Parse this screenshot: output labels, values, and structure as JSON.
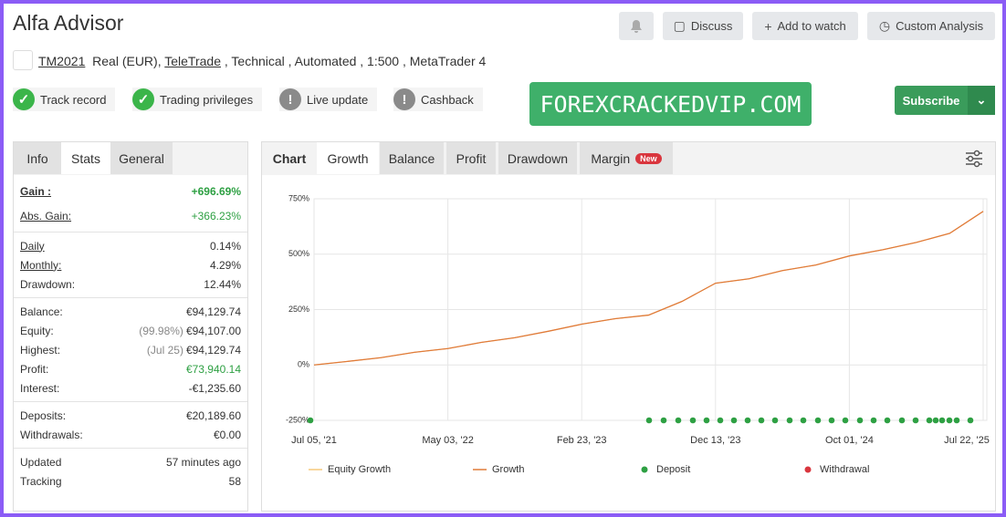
{
  "header": {
    "title": "Alfa Advisor",
    "buttons": [
      "Discuss",
      "Add to watch",
      "Custom Analysis"
    ]
  },
  "account": {
    "name": "TM2021",
    "type": "Real (EUR),",
    "broker": "TeleTrade",
    "details": ", Technical , Automated , 1:500 , MetaTrader 4"
  },
  "badges": [
    "Track record",
    "Trading privileges",
    "Live update",
    "Cashback"
  ],
  "watermark": "FOREXCRACKEDVIP.COM",
  "subscribe": "Subscribe",
  "stats_tabs": [
    "Info",
    "Stats",
    "General"
  ],
  "stats": [
    [
      {
        "label": "Gain :",
        "value": "+696.69%"
      },
      {
        "label": "Abs. Gain:",
        "value": "+366.23%"
      }
    ],
    [
      {
        "label": "Daily",
        "value": "0.14%"
      },
      {
        "label": "Monthly:",
        "value": "4.29%"
      },
      {
        "label": "Drawdown:",
        "value": "12.44%"
      }
    ],
    [
      {
        "label": "Balance:",
        "value": "€94,129.74"
      },
      {
        "label": "Equity:",
        "note": "(99.98%)",
        "value": "€94,107.00"
      },
      {
        "label": "Highest:",
        "note": "(Jul 25)",
        "value": "€94,129.74"
      },
      {
        "label": "Profit:",
        "value": "€73,940.14"
      },
      {
        "label": "Interest:",
        "value": "-€1,235.60"
      }
    ],
    [
      {
        "label": "Deposits:",
        "value": "€20,189.60"
      },
      {
        "label": "Withdrawals:",
        "value": "€0.00"
      }
    ],
    [
      {
        "label": "Updated",
        "value": "57 minutes ago"
      },
      {
        "label": "Tracking",
        "value": "58"
      }
    ]
  ],
  "chart_tabs": [
    "Chart",
    "Growth",
    "Balance",
    "Profit",
    "Drawdown",
    "Margin"
  ],
  "new_badge": "New",
  "chart_data": {
    "type": "line",
    "categories": [
      "Jul 05, '21",
      null,
      null,
      null,
      "May 03, '22",
      null,
      null,
      null,
      "Feb 23, '23",
      null,
      null,
      null,
      "Dec 13, '23",
      null,
      null,
      null,
      "Oct 01, '24",
      null,
      null,
      null,
      "Jul 22, '25"
    ],
    "series": [
      {
        "name": "Equity Growth",
        "color": "#f5c97a",
        "values": [
          0,
          16,
          33,
          57,
          74,
          102,
          123,
          152,
          184,
          209,
          225,
          287,
          369,
          389,
          426,
          451,
          492,
          520,
          553,
          594,
          693
        ]
      },
      {
        "name": "Growth",
        "color": "#e07b39",
        "values": [
          0,
          16,
          33,
          57,
          74,
          102,
          123,
          152,
          184,
          209,
          225,
          287,
          369,
          389,
          426,
          451,
          492,
          520,
          553,
          594,
          693
        ]
      }
    ],
    "markers": [
      {
        "name": "Deposit",
        "color": "#2ea043"
      },
      {
        "name": "Withdrawal",
        "color": "#d9363e"
      }
    ],
    "ylim": [
      -250,
      750
    ],
    "yticks": [
      {
        "value": -250,
        "label": "-250%"
      },
      {
        "value": 0,
        "label": "0%"
      },
      {
        "value": 250,
        "label": "250%"
      },
      {
        "value": 500,
        "label": "500%"
      },
      {
        "value": 750,
        "label": "750%"
      }
    ],
    "grid": true
  }
}
